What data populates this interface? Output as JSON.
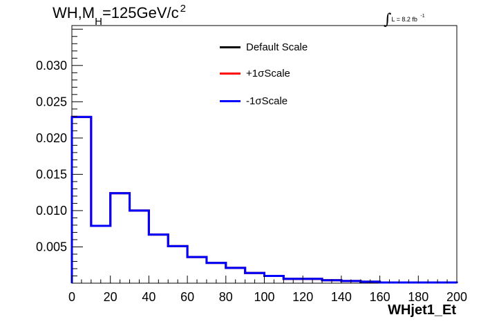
{
  "title": {
    "prefix": "WH,M",
    "sub": "H",
    "middle": "=125GeV/c",
    "sup": "2"
  },
  "lumi": {
    "integral": "∫",
    "text": "L = 8.2 fb",
    "sup": "-1"
  },
  "legend": [
    {
      "label": "Default Scale",
      "color": "#000000"
    },
    {
      "label": "+1σScale",
      "color": "#ff0000"
    },
    {
      "label": "-1σScale",
      "color": "#0000ff"
    }
  ],
  "chart_data": {
    "type": "histogram",
    "xlabel": "WHjet1_Et",
    "xlim": [
      0,
      200
    ],
    "ylim": [
      0,
      0.0355
    ],
    "xticks": [
      0,
      20,
      40,
      60,
      80,
      100,
      120,
      140,
      160,
      180,
      200
    ],
    "xtick_labels": [
      "0",
      "20",
      "40",
      "60",
      "80",
      "100",
      "120",
      "140",
      "160",
      "180",
      "200"
    ],
    "yticks": [
      0.005,
      0.01,
      0.015,
      0.02,
      0.025,
      0.03
    ],
    "ytick_labels": [
      "0.005",
      "0.010",
      "0.015",
      "0.020",
      "0.025",
      "0.030"
    ],
    "bin_edges": [
      0,
      10,
      20,
      30,
      40,
      50,
      60,
      70,
      80,
      90,
      100,
      110,
      120,
      130,
      140,
      150,
      160,
      170,
      180,
      190,
      200
    ],
    "series": [
      {
        "name": "Default Scale",
        "color": "#000000",
        "values": [
          0.0229,
          0.0079,
          0.0124,
          0.01,
          0.0067,
          0.0051,
          0.0036,
          0.0028,
          0.0021,
          0.0014,
          0.001,
          0.0006,
          0.0006,
          0.0004,
          0.0003,
          0.0002,
          0.0001,
          0.0001,
          0.0001,
          0.0001
        ]
      },
      {
        "name": "+1σScale",
        "color": "#ff0000",
        "values": [
          0.0229,
          0.0079,
          0.0124,
          0.01,
          0.0067,
          0.0051,
          0.0036,
          0.0028,
          0.0021,
          0.0014,
          0.001,
          0.0006,
          0.0006,
          0.0004,
          0.0003,
          0.0002,
          0.0001,
          0.0001,
          0.0001,
          0.0001
        ]
      },
      {
        "name": "-1σScale",
        "color": "#0000ff",
        "values": [
          0.0229,
          0.0079,
          0.0124,
          0.01,
          0.0067,
          0.0051,
          0.0036,
          0.0028,
          0.0021,
          0.0014,
          0.001,
          0.0006,
          0.0006,
          0.0004,
          0.0003,
          0.0002,
          0.0001,
          0.0001,
          0.0001,
          0.0001
        ]
      }
    ]
  }
}
